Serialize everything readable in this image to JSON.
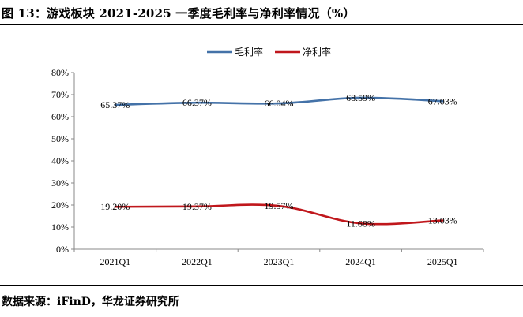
{
  "figure": {
    "title": "图 13：游戏板块 2021-2025 一季度毛利率与净利率情况（%）",
    "source": "数据来源：iFinD，华龙证券研究所"
  },
  "colors": {
    "gross_margin": "#4472a8",
    "net_margin": "#c0171c",
    "axis": "#888888",
    "text": "#000000"
  },
  "chart_data": {
    "type": "line",
    "title": "",
    "xlabel": "",
    "ylabel": "",
    "categories": [
      "2021Q1",
      "2022Q1",
      "2023Q1",
      "2024Q1",
      "2025Q1"
    ],
    "ylim": [
      0,
      80
    ],
    "yticks": [
      0,
      10,
      20,
      30,
      40,
      50,
      60,
      70,
      80
    ],
    "ytick_labels": [
      "0%",
      "10%",
      "20%",
      "30%",
      "40%",
      "50%",
      "60%",
      "70%",
      "80%"
    ],
    "grid": false,
    "legend_position": "top-center",
    "series": [
      {
        "name": "毛利率",
        "values": [
          65.37,
          66.37,
          66.04,
          68.59,
          67.03
        ],
        "labels": [
          "65.37%",
          "66.37%",
          "66.04%",
          "68.59%",
          "67.03%"
        ]
      },
      {
        "name": "净利率",
        "values": [
          19.2,
          19.37,
          19.57,
          11.68,
          13.03
        ],
        "labels": [
          "19.20%",
          "19.37%",
          "19.57%",
          "11.68%",
          "13.03%"
        ]
      }
    ]
  }
}
